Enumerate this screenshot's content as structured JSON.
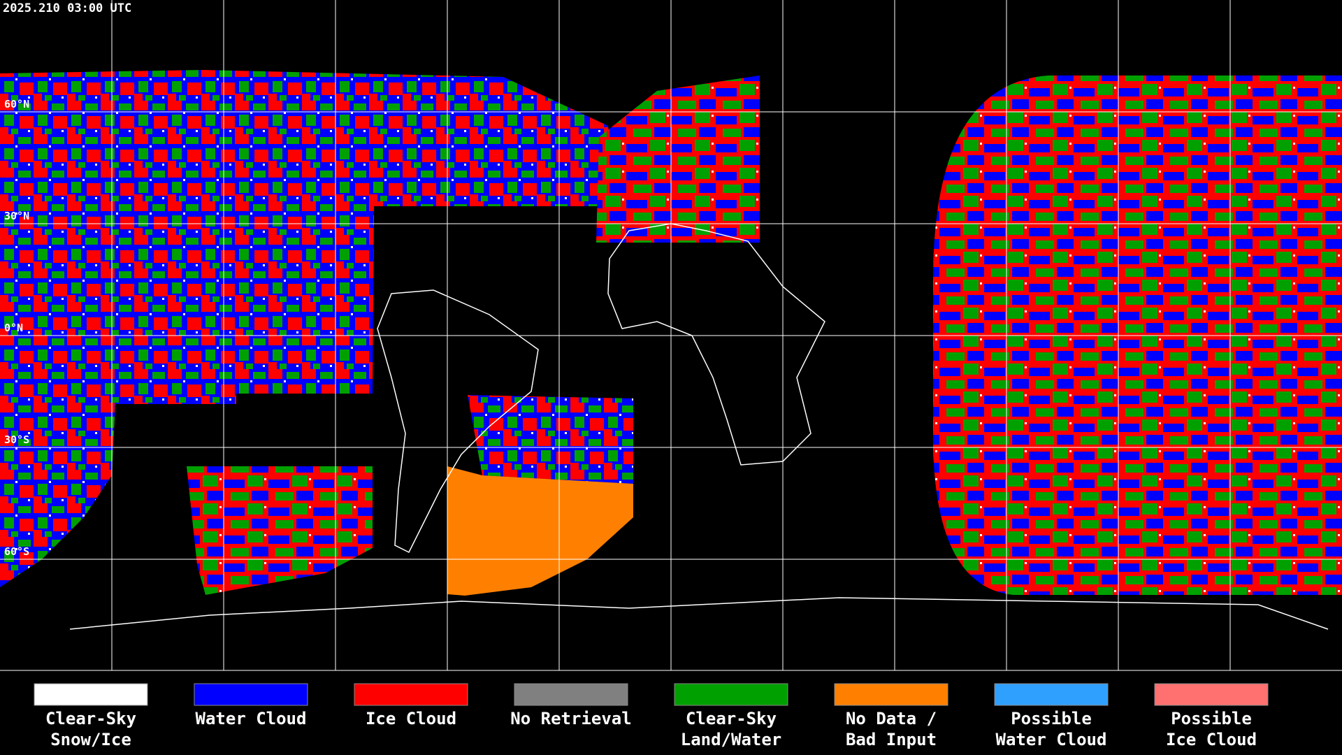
{
  "timestamp": "2025.210 03:00 UTC",
  "latitude_labels": [
    "60°N",
    "30°N",
    "0°N",
    "30°S",
    "60°S"
  ],
  "legend": [
    {
      "lines": [
        "Clear-Sky",
        "Snow/Ice"
      ],
      "color": "#ffffff"
    },
    {
      "lines": [
        "Water Cloud"
      ],
      "color": "#0000ff"
    },
    {
      "lines": [
        "Ice Cloud"
      ],
      "color": "#ff0000"
    },
    {
      "lines": [
        "No Retrieval"
      ],
      "color": "#808080"
    },
    {
      "lines": [
        "Clear-Sky",
        "Land/Water"
      ],
      "color": "#00a000"
    },
    {
      "lines": [
        "No Data /",
        "Bad Input"
      ],
      "color": "#ff8000"
    },
    {
      "lines": [
        "Possible",
        "Water Cloud"
      ],
      "color": "#30a0ff"
    },
    {
      "lines": [
        "Possible",
        "Ice Cloud"
      ],
      "color": "#ff7070"
    }
  ]
}
